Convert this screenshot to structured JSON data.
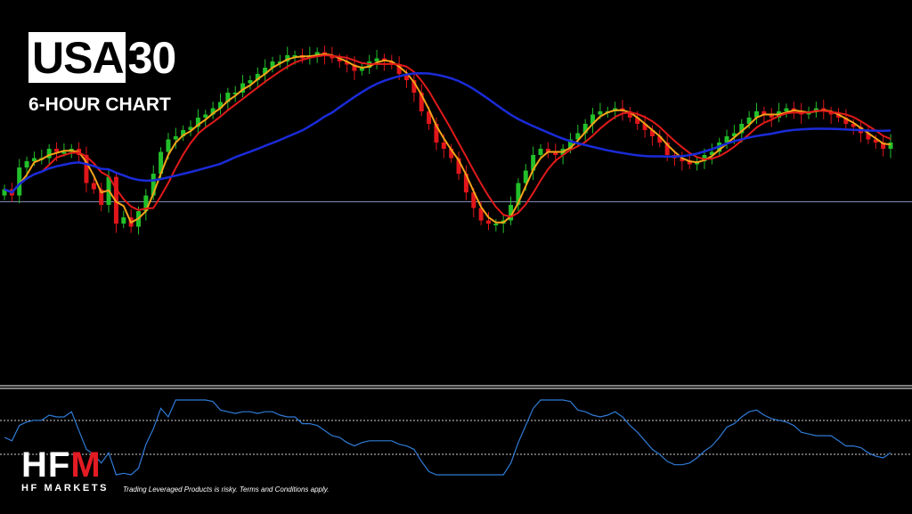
{
  "header": {
    "title_boxed": "USA",
    "title_rest": "30",
    "subtitle": "6-HOUR CHART"
  },
  "footer": {
    "logo_text_a": "HF",
    "logo_text_b": "M",
    "logo_sub": "HF MARKETS",
    "disclaimer": "Trading Leveraged Products is risky. Terms and Conditions apply."
  },
  "colors": {
    "background": "#000000",
    "bull": "#22c02a",
    "bear": "#e0161b",
    "ma_fast": "#f5a31a",
    "ma_mid": "#e11a1a",
    "ma_slow": "#1a2bd8",
    "oscillator": "#2f7bd6",
    "h_line": "#7f8db0"
  },
  "chart_data": {
    "type": "candlestick",
    "title": "USA30",
    "subtitle": "6-HOUR CHART",
    "price_scale": "unlabeled",
    "reference_level": 0.41,
    "candles_close_normalized": [
      0.45,
      0.43,
      0.52,
      0.54,
      0.55,
      0.55,
      0.58,
      0.57,
      0.57,
      0.58,
      0.56,
      0.47,
      0.45,
      0.4,
      0.49,
      0.34,
      0.36,
      0.33,
      0.38,
      0.43,
      0.5,
      0.57,
      0.61,
      0.62,
      0.64,
      0.65,
      0.68,
      0.69,
      0.71,
      0.73,
      0.76,
      0.76,
      0.79,
      0.8,
      0.82,
      0.84,
      0.86,
      0.86,
      0.88,
      0.88,
      0.87,
      0.88,
      0.89,
      0.88,
      0.87,
      0.86,
      0.85,
      0.83,
      0.84,
      0.86,
      0.87,
      0.86,
      0.85,
      0.82,
      0.8,
      0.76,
      0.7,
      0.66,
      0.6,
      0.58,
      0.55,
      0.5,
      0.44,
      0.39,
      0.35,
      0.34,
      0.34,
      0.35,
      0.4,
      0.47,
      0.51,
      0.56,
      0.58,
      0.57,
      0.56,
      0.58,
      0.61,
      0.63,
      0.66,
      0.69,
      0.7,
      0.7,
      0.71,
      0.7,
      0.68,
      0.66,
      0.64,
      0.62,
      0.6,
      0.56,
      0.55,
      0.54,
      0.53,
      0.54,
      0.56,
      0.57,
      0.6,
      0.62,
      0.63,
      0.66,
      0.68,
      0.7,
      0.69,
      0.68,
      0.7,
      0.71,
      0.7,
      0.69,
      0.7,
      0.71,
      0.7,
      0.69,
      0.68,
      0.66,
      0.65,
      0.63,
      0.61,
      0.6,
      0.58,
      0.6
    ],
    "moving_averages": [
      {
        "name": "",
        "color_key": "ma_fast"
      },
      {
        "name": "",
        "color_key": "ma_mid"
      },
      {
        "name": "",
        "color_key": "ma_slow"
      }
    ],
    "oscillator": {
      "color_key": "oscillator",
      "levels": [
        "upper",
        "lower"
      ]
    }
  }
}
